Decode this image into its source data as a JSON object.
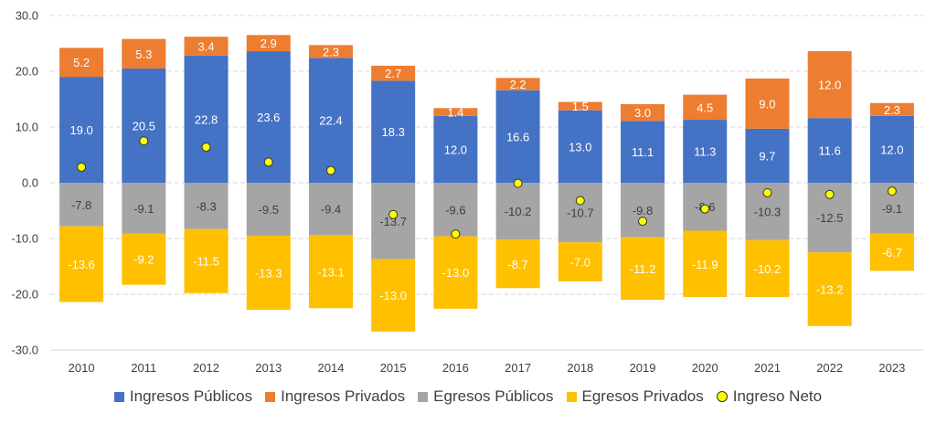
{
  "chart_data": {
    "type": "bar",
    "stacked": true,
    "categories": [
      "2010",
      "2011",
      "2012",
      "2013",
      "2014",
      "2015",
      "2016",
      "2017",
      "2018",
      "2019",
      "2020",
      "2021",
      "2022",
      "2023"
    ],
    "series": [
      {
        "name": "Ingresos Públicos",
        "color": "#4472C4",
        "values": [
          19.0,
          20.5,
          22.8,
          23.6,
          22.4,
          18.3,
          12.0,
          16.6,
          13.0,
          11.1,
          11.3,
          9.7,
          11.6,
          12.0
        ]
      },
      {
        "name": "Ingresos Privados",
        "color": "#ED7D31",
        "values": [
          5.2,
          5.3,
          3.4,
          2.9,
          2.3,
          2.7,
          1.4,
          2.2,
          1.5,
          3.0,
          4.5,
          9.0,
          12.0,
          2.3
        ]
      },
      {
        "name": "Egresos Públicos",
        "color": "#A5A5A5",
        "values": [
          -7.8,
          -9.1,
          -8.3,
          -9.5,
          -9.4,
          -13.7,
          -9.6,
          -10.2,
          -10.7,
          -9.8,
          -8.6,
          -10.3,
          -12.5,
          -9.1
        ]
      },
      {
        "name": "Egresos Privados",
        "color": "#FFC000",
        "values": [
          -13.6,
          -9.2,
          -11.5,
          -13.3,
          -13.1,
          -13.0,
          -13.0,
          -8.7,
          -7.0,
          -11.2,
          -11.9,
          -10.2,
          -13.2,
          -6.7
        ]
      }
    ],
    "line_series": {
      "name": "Ingreso Neto",
      "color": "#FFFF00",
      "values": [
        2.8,
        7.5,
        6.4,
        3.7,
        2.2,
        -5.7,
        -9.2,
        -0.1,
        -3.2,
        -6.9,
        -4.7,
        -1.8,
        -2.1,
        -1.5
      ]
    },
    "y_ticks": [
      "30.0",
      "20.0",
      "10.0",
      "0.0",
      "-10.0",
      "-20.0",
      "-30.0"
    ],
    "ylim": [
      -30,
      30
    ],
    "grid": true,
    "legend_position": "bottom"
  }
}
